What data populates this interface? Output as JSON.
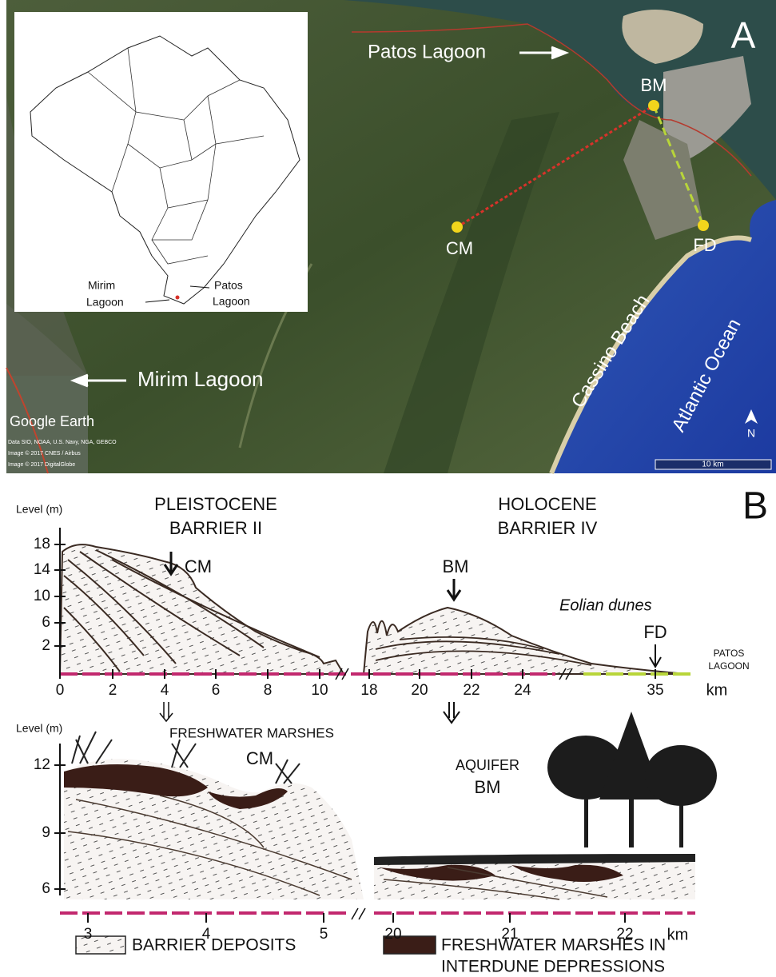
{
  "panel_a": {
    "label": "A",
    "patos_lagoon": "Patos Lagoon",
    "mirim_lagoon": "Mirim Lagoon",
    "sites": [
      "BM",
      "CM",
      "FD"
    ],
    "cassino_beach": "Cassino Beach",
    "atlantic_ocean": "Atlantic Ocean",
    "watermark": "Google Earth",
    "credits": [
      "Data SIO, NOAA, U.S. Navy, NGA, GEBCO",
      "Image © 2017 CNES / Airbus",
      "Image © 2017 DigitalGlobe"
    ],
    "scale_bar": "10 km",
    "north": "N",
    "inset": {
      "mirim_lagoon": [
        "Mirim",
        "Lagoon"
      ],
      "patos_lagoon": [
        "Patos",
        "Lagoon"
      ]
    }
  },
  "panel_b": {
    "label": "B",
    "profile": {
      "y_label": "Level (m)",
      "pleistocene": [
        "PLEISTOCENE",
        "BARRIER II"
      ],
      "holocene": [
        "HOLOCENE",
        "BARRIER IV"
      ],
      "yticks": [
        18,
        14,
        10,
        6,
        2
      ],
      "xticks": [
        0,
        2,
        4,
        6,
        8,
        10,
        18,
        20,
        22,
        24,
        35
      ],
      "x_unit": "km",
      "sites": [
        "CM",
        "BM",
        "FD"
      ],
      "eolian_dunes": "Eolian dunes",
      "patos_lagoon": [
        "PATOS",
        "LAGOON"
      ]
    },
    "detail": {
      "y_label": "Level (m)",
      "freshwater_marshes": "FRESHWATER MARSHES",
      "aquifer": "AQUIFER",
      "sites": [
        "CM",
        "BM"
      ],
      "yticks": [
        12,
        9,
        6
      ],
      "xticks": [
        3,
        4,
        5,
        20,
        21,
        22
      ],
      "x_unit": "km"
    },
    "legend": [
      "BARRIER DEPOSITS",
      [
        "FRESHWATER MARSHES IN",
        "INTERDUNE DEPRESSIONS"
      ]
    ]
  }
}
